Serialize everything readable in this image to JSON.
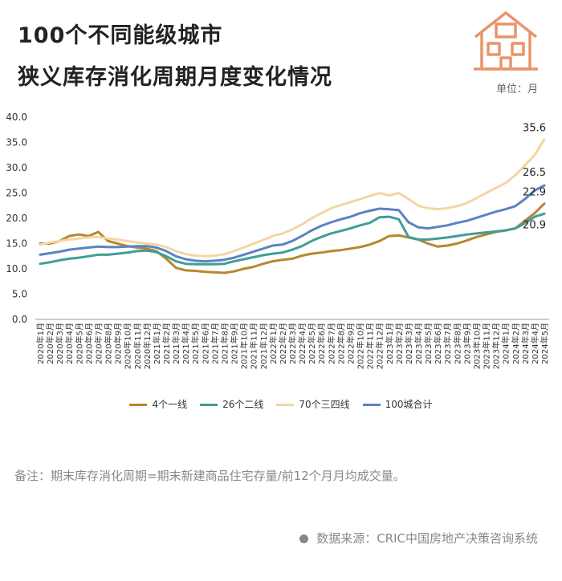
{
  "header": {
    "title_line1": "100个不同能级城市",
    "title_line2": "狭义库存消化周期月度变化情况",
    "unit": "单位：月"
  },
  "logo": {
    "icon": "house-icon",
    "color": "#e8956a"
  },
  "legend": [
    {
      "name": "4个一线",
      "color": "#b8862e"
    },
    {
      "name": "26个二线",
      "color": "#3f9e98"
    },
    {
      "name": "70个三四线",
      "color": "#f4d6a3"
    },
    {
      "name": "100城合计",
      "color": "#5a83c2"
    }
  ],
  "note": "备注：期末库存消化周期=期末新建商品住宅存量/前12个月月均成交量。",
  "source": "数据来源：CRIC中国房地产决策咨询系统",
  "chart_data": {
    "type": "line",
    "title": "",
    "xlabel": "",
    "ylabel": "",
    "ylim": [
      0,
      40
    ],
    "yticks": [
      "0.0",
      "5.0",
      "10.0",
      "15.0",
      "20.0",
      "25.0",
      "30.0",
      "35.0",
      "40.0"
    ],
    "grid": false,
    "legend_position": "bottom",
    "x": [
      "2020年1月",
      "2020年2月",
      "2020年3月",
      "2020年4月",
      "2020年5月",
      "2020年6月",
      "2020年7月",
      "2020年8月",
      "2020年9月",
      "2020年10月",
      "2020年11月",
      "2020年12月",
      "2021年1月",
      "2021年2月",
      "2021年3月",
      "2021年4月",
      "2021年5月",
      "2021年6月",
      "2021年7月",
      "2021年8月",
      "2021年9月",
      "2021年10月",
      "2021年11月",
      "2021年12月",
      "2022年1月",
      "2022年2月",
      "2022年3月",
      "2022年4月",
      "2022年5月",
      "2022年6月",
      "2022年7月",
      "2022年8月",
      "2022年9月",
      "2022年10月",
      "2022年11月",
      "2022年12月",
      "2023年1月",
      "2023年2月",
      "2023年3月",
      "2023年4月",
      "2023年5月",
      "2023年6月",
      "2023年7月",
      "2023年8月",
      "2023年9月",
      "2023年10月",
      "2023年11月",
      "2023年12月",
      "2024年1月",
      "2024年2月",
      "2024年3月",
      "2024年4月",
      "2024年5月"
    ],
    "series": [
      {
        "name": "4个一线",
        "color": "#b8862e",
        "end_label": "22.9",
        "values": [
          15.0,
          15.0,
          15.5,
          16.5,
          16.8,
          16.5,
          17.3,
          15.5,
          15.0,
          14.5,
          14.2,
          14.0,
          13.5,
          12.0,
          10.2,
          9.7,
          9.6,
          9.4,
          9.3,
          9.2,
          9.5,
          10.0,
          10.4,
          11.0,
          11.5,
          11.8,
          12.0,
          12.6,
          13.0,
          13.2,
          13.5,
          13.7,
          14.0,
          14.3,
          14.8,
          15.5,
          16.5,
          16.6,
          16.2,
          15.8,
          15.0,
          14.4,
          14.6,
          15.0,
          15.6,
          16.3,
          16.8,
          17.3,
          17.6,
          18.0,
          19.5,
          21.0,
          22.9
        ]
      },
      {
        "name": "26个二线",
        "color": "#3f9e98",
        "end_label": "20.9",
        "values": [
          11.0,
          11.3,
          11.7,
          12.0,
          12.2,
          12.5,
          12.8,
          12.8,
          13.0,
          13.2,
          13.5,
          13.6,
          13.3,
          12.5,
          11.5,
          11.0,
          10.9,
          10.9,
          10.9,
          11.0,
          11.5,
          11.9,
          12.3,
          12.7,
          13.0,
          13.2,
          13.8,
          14.5,
          15.5,
          16.3,
          17.0,
          17.5,
          18.0,
          18.6,
          19.1,
          20.2,
          20.3,
          19.8,
          16.3,
          15.8,
          15.8,
          16.0,
          16.2,
          16.5,
          16.8,
          17.0,
          17.2,
          17.4,
          17.6,
          18.0,
          19.0,
          20.3,
          20.9
        ]
      },
      {
        "name": "70个三四线",
        "color": "#f4d6a3",
        "end_label": "35.6",
        "values": [
          14.8,
          15.2,
          15.5,
          15.8,
          16.0,
          16.2,
          16.3,
          16.0,
          15.8,
          15.5,
          15.2,
          15.0,
          14.8,
          14.3,
          13.5,
          12.9,
          12.6,
          12.5,
          12.6,
          12.9,
          13.5,
          14.2,
          15.0,
          15.7,
          16.5,
          17.0,
          17.8,
          18.8,
          20.0,
          21.0,
          22.0,
          22.6,
          23.2,
          23.8,
          24.4,
          25.0,
          24.5,
          25.0,
          23.8,
          22.5,
          22.0,
          21.8,
          22.0,
          22.4,
          23.0,
          24.0,
          25.0,
          26.0,
          27.0,
          28.5,
          30.5,
          32.5,
          35.6
        ]
      },
      {
        "name": "100城合计",
        "color": "#5a83c2",
        "end_label": "26.5",
        "values": [
          12.8,
          13.1,
          13.4,
          13.8,
          14.0,
          14.2,
          14.4,
          14.3,
          14.3,
          14.4,
          14.5,
          14.5,
          14.2,
          13.5,
          12.5,
          11.9,
          11.6,
          11.5,
          11.6,
          11.8,
          12.2,
          12.8,
          13.4,
          14.0,
          14.6,
          14.8,
          15.5,
          16.5,
          17.6,
          18.5,
          19.2,
          19.8,
          20.3,
          21.0,
          21.5,
          21.9,
          21.8,
          21.6,
          19.2,
          18.2,
          18.0,
          18.3,
          18.6,
          19.1,
          19.5,
          20.1,
          20.7,
          21.3,
          21.8,
          22.4,
          23.8,
          25.5,
          26.5
        ]
      }
    ]
  }
}
